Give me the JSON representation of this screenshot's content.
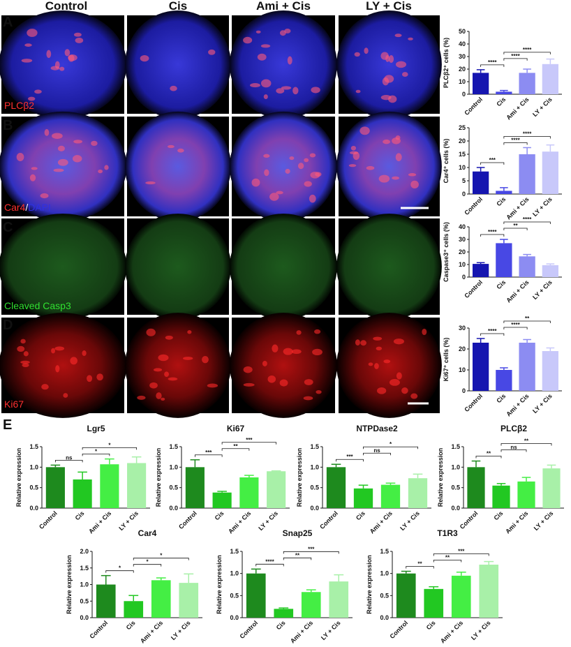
{
  "figure": {
    "panels": [
      "A",
      "B",
      "C",
      "D",
      "E"
    ],
    "columns": [
      "Control",
      "Cis",
      "Ami + Cis",
      "LY + Cis"
    ],
    "stains": [
      [
        "PLCβ2"
      ],
      [
        "Car4",
        "/",
        "DAPI"
      ],
      [
        "Cleaved Casp3"
      ],
      [
        "Ki67"
      ]
    ]
  },
  "chart_data": [
    {
      "type": "bar",
      "ylabel": "PLCβ2⁺ cells (%)",
      "categories": [
        "Control",
        "Cis",
        "Ami + Cis",
        "LY + Cis"
      ],
      "values": [
        17,
        2,
        17,
        24
      ],
      "errors": [
        2.5,
        1,
        3,
        4
      ],
      "colors": [
        "#1515b0",
        "#4848e4",
        "#8c8cf2",
        "#c8c8fa"
      ],
      "ylim": [
        0,
        50
      ],
      "yticks": [
        0,
        10,
        20,
        30,
        40,
        50
      ],
      "significance": [
        {
          "bars": [
            0,
            1
          ],
          "label": "****"
        },
        {
          "bars": [
            1,
            2
          ],
          "label": "****"
        },
        {
          "bars": [
            1,
            3
          ],
          "label": "****"
        }
      ]
    },
    {
      "type": "bar",
      "ylabel": "Car4⁺ cells (%)",
      "categories": [
        "Control",
        "Cis",
        "Ami + Cis",
        "LY + Cis"
      ],
      "values": [
        8.5,
        1.2,
        15,
        16
      ],
      "errors": [
        1.5,
        1.2,
        2.5,
        2.5
      ],
      "colors": [
        "#1515b0",
        "#4848e4",
        "#8c8cf2",
        "#c8c8fa"
      ],
      "ylim": [
        0,
        25
      ],
      "yticks": [
        0,
        5,
        10,
        15,
        20,
        25
      ],
      "significance": [
        {
          "bars": [
            0,
            1
          ],
          "label": "***"
        },
        {
          "bars": [
            1,
            2
          ],
          "label": "****"
        },
        {
          "bars": [
            1,
            3
          ],
          "label": "****"
        }
      ]
    },
    {
      "type": "bar",
      "ylabel": "Caspase3⁺ cells (%)",
      "categories": [
        "Control",
        "Cis",
        "Ami + Cis",
        "LY + Cis"
      ],
      "values": [
        10.5,
        27,
        16.5,
        9.5
      ],
      "errors": [
        1,
        3,
        1.5,
        1
      ],
      "colors": [
        "#1515b0",
        "#4848e4",
        "#8c8cf2",
        "#c8c8fa"
      ],
      "ylim": [
        0,
        40
      ],
      "yticks": [
        0,
        10,
        20,
        30,
        40
      ],
      "significance": [
        {
          "bars": [
            0,
            1
          ],
          "label": "****"
        },
        {
          "bars": [
            1,
            2
          ],
          "label": "**"
        },
        {
          "bars": [
            1,
            3
          ],
          "label": "****"
        }
      ]
    },
    {
      "type": "bar",
      "ylabel": "Ki67⁺ cells (%)",
      "categories": [
        "Control",
        "Cis",
        "Ami + Cis",
        "LY + Cis"
      ],
      "values": [
        23,
        10,
        23,
        19
      ],
      "errors": [
        2,
        1,
        1.5,
        1.5
      ],
      "colors": [
        "#1515b0",
        "#4848e4",
        "#8c8cf2",
        "#c8c8fa"
      ],
      "ylim": [
        0,
        30
      ],
      "yticks": [
        0,
        10,
        20,
        30
      ],
      "significance": [
        {
          "bars": [
            0,
            1
          ],
          "label": "****"
        },
        {
          "bars": [
            1,
            2
          ],
          "label": "****"
        },
        {
          "bars": [
            1,
            3
          ],
          "label": "**"
        }
      ]
    },
    {
      "type": "bar",
      "title": "Lgr5",
      "ylabel": "Relative expression",
      "categories": [
        "Control",
        "Cis",
        "Ami + Cis",
        "LY + Cis"
      ],
      "values": [
        1.0,
        0.7,
        1.07,
        1.1
      ],
      "errors": [
        0.05,
        0.18,
        0.13,
        0.15
      ],
      "colors": [
        "#1e8a1e",
        "#22c822",
        "#44ee44",
        "#a8f0a8"
      ],
      "ylim": [
        0,
        1.5
      ],
      "yticks": [
        {
          "value": 0,
          "label": "0.0"
        },
        0.5,
        {
          "value": 1,
          "label": "1.0"
        },
        1.5
      ],
      "significance": [
        {
          "bars": [
            0,
            1
          ],
          "label": "ns"
        },
        {
          "bars": [
            1,
            2
          ],
          "label": "*"
        },
        {
          "bars": [
            1,
            3
          ],
          "label": "*"
        }
      ]
    },
    {
      "type": "bar",
      "title": "Ki67",
      "ylabel": "Relative expression",
      "categories": [
        "Control",
        "Cis",
        "Ami + Cis",
        "LY + Cis"
      ],
      "values": [
        1.0,
        0.38,
        0.75,
        0.9
      ],
      "errors": [
        0.18,
        0.03,
        0.05,
        0.01
      ],
      "colors": [
        "#1e8a1e",
        "#22c822",
        "#44ee44",
        "#a8f0a8"
      ],
      "ylim": [
        0,
        1.5
      ],
      "yticks": [
        {
          "value": 0,
          "label": "0.0"
        },
        0.5,
        {
          "value": 1,
          "label": "1.0"
        },
        1.5
      ],
      "significance": [
        {
          "bars": [
            0,
            1
          ],
          "label": "***"
        },
        {
          "bars": [
            1,
            2
          ],
          "label": "**"
        },
        {
          "bars": [
            1,
            3
          ],
          "label": "***"
        }
      ]
    },
    {
      "type": "bar",
      "title": "NTPDase2",
      "ylabel": "Relative expression",
      "categories": [
        "Control",
        "Cis",
        "Ami + Cis",
        "LY + Cis"
      ],
      "values": [
        1.0,
        0.48,
        0.57,
        0.73
      ],
      "errors": [
        0.07,
        0.08,
        0.04,
        0.1
      ],
      "colors": [
        "#1e8a1e",
        "#22c822",
        "#44ee44",
        "#a8f0a8"
      ],
      "ylim": [
        0,
        1.5
      ],
      "yticks": [
        {
          "value": 0,
          "label": "0.0"
        },
        0.5,
        {
          "value": 1,
          "label": "1.0"
        },
        1.5
      ],
      "significance": [
        {
          "bars": [
            0,
            1
          ],
          "label": "***"
        },
        {
          "bars": [
            1,
            2
          ],
          "label": "ns"
        },
        {
          "bars": [
            1,
            3
          ],
          "label": "*"
        }
      ]
    },
    {
      "type": "bar",
      "title": "PLCβ2",
      "ylabel": "Relative expression",
      "categories": [
        "Control",
        "Cis",
        "Ami + Cis",
        "LY + Cis"
      ],
      "values": [
        1.0,
        0.55,
        0.65,
        0.97
      ],
      "errors": [
        0.15,
        0.05,
        0.1,
        0.08
      ],
      "colors": [
        "#1e8a1e",
        "#22c822",
        "#44ee44",
        "#a8f0a8"
      ],
      "ylim": [
        0,
        1.5
      ],
      "yticks": [
        {
          "value": 0,
          "label": "0.0"
        },
        0.5,
        {
          "value": 1,
          "label": "1.0"
        },
        1.5
      ],
      "significance": [
        {
          "bars": [
            0,
            1
          ],
          "label": "**"
        },
        {
          "bars": [
            1,
            2
          ],
          "label": "ns"
        },
        {
          "bars": [
            1,
            3
          ],
          "label": "**"
        }
      ]
    },
    {
      "type": "bar",
      "title": "Car4",
      "ylabel": "Relative expression",
      "categories": [
        "Control",
        "Cis",
        "Ami + Cis",
        "LY + Cis"
      ],
      "values": [
        1.0,
        0.5,
        1.13,
        1.05
      ],
      "errors": [
        0.27,
        0.17,
        0.07,
        0.27
      ],
      "colors": [
        "#1e8a1e",
        "#22c822",
        "#44ee44",
        "#a8f0a8"
      ],
      "ylim": [
        0,
        2
      ],
      "yticks": [
        {
          "value": 0,
          "label": "0.0"
        },
        0.5,
        {
          "value": 1,
          "label": "1.0"
        },
        1.5,
        {
          "value": 2,
          "label": "2.0"
        }
      ],
      "significance": [
        {
          "bars": [
            0,
            1
          ],
          "label": "*"
        },
        {
          "bars": [
            1,
            2
          ],
          "label": "*"
        },
        {
          "bars": [
            1,
            3
          ],
          "label": "*"
        }
      ]
    },
    {
      "type": "bar",
      "title": "Snap25",
      "ylabel": "Relative expression",
      "categories": [
        "Control",
        "Cis",
        "Ami + Cis",
        "LY + Cis"
      ],
      "values": [
        1.0,
        0.2,
        0.58,
        0.82
      ],
      "errors": [
        0.1,
        0.02,
        0.05,
        0.15
      ],
      "colors": [
        "#1e8a1e",
        "#22c822",
        "#44ee44",
        "#a8f0a8"
      ],
      "ylim": [
        0,
        1.5
      ],
      "yticks": [
        {
          "value": 0,
          "label": "0.0"
        },
        0.5,
        {
          "value": 1,
          "label": "1.0"
        },
        1.5
      ],
      "significance": [
        {
          "bars": [
            0,
            1
          ],
          "label": "****"
        },
        {
          "bars": [
            1,
            2
          ],
          "label": "**"
        },
        {
          "bars": [
            1,
            3
          ],
          "label": "***"
        }
      ]
    },
    {
      "type": "bar",
      "title": "T1R3",
      "ylabel": "Relative expression",
      "categories": [
        "Control",
        "Cis",
        "Ami + Cis",
        "LY + Cis"
      ],
      "values": [
        1.0,
        0.65,
        0.95,
        1.2
      ],
      "errors": [
        0.05,
        0.05,
        0.08,
        0.07
      ],
      "colors": [
        "#1e8a1e",
        "#22c822",
        "#44ee44",
        "#a8f0a8"
      ],
      "ylim": [
        0,
        1.5
      ],
      "yticks": [
        {
          "value": 0,
          "label": "0.0"
        },
        0.5,
        {
          "value": 1,
          "label": "1.0"
        },
        1.5
      ],
      "significance": [
        {
          "bars": [
            0,
            1
          ],
          "label": "**"
        },
        {
          "bars": [
            1,
            2
          ],
          "label": "**"
        },
        {
          "bars": [
            1,
            3
          ],
          "label": "***"
        }
      ]
    }
  ]
}
